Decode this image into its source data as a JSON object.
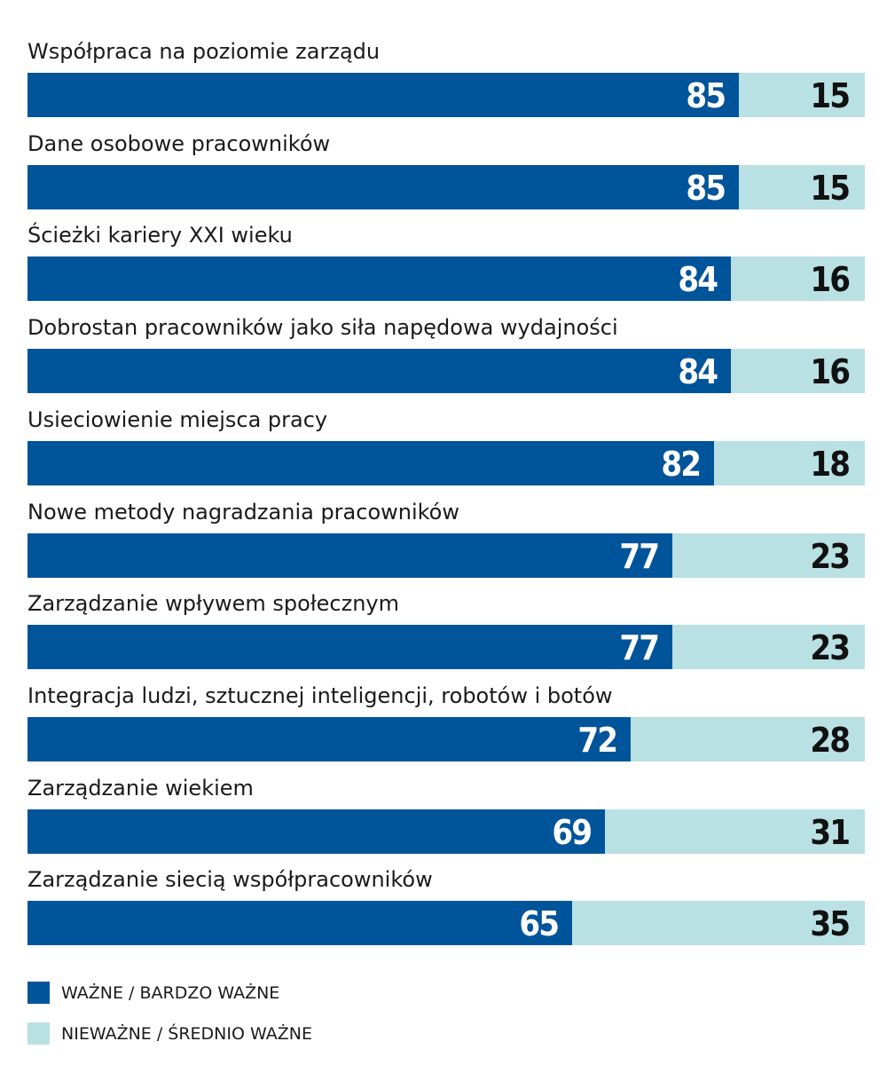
{
  "colors": {
    "primary": "#00549a",
    "secondary": "#b9e0e3",
    "primary_text": "#ffffff",
    "secondary_text": "#111111"
  },
  "chart_data": {
    "type": "bar",
    "orientation": "horizontal",
    "stacked": true,
    "categories": [
      "Współpraca na poziomie zarządu",
      "Dane osobowe pracowników",
      "Ścieżki kariery XXI wieku",
      "Dobrostan pracowników jako siła napędowa wydajności",
      "Usieciowienie miejsca pracy",
      "Nowe metody nagradzania pracowników",
      "Zarządzanie wpływem społecznym",
      "Integracja ludzi, sztucznej inteligencji, robotów i botów",
      "Zarządzanie wiekiem",
      "Zarządzanie siecią współpracowników"
    ],
    "series": [
      {
        "name": "WAŻNE / BARDZO WAŻNE",
        "color": "#00549a",
        "values": [
          85,
          85,
          84,
          84,
          82,
          77,
          77,
          72,
          69,
          65
        ]
      },
      {
        "name": "NIEWAŻNE / ŚREDNIO WAŻNE",
        "color": "#b9e0e3",
        "values": [
          15,
          15,
          16,
          16,
          18,
          23,
          23,
          28,
          31,
          35
        ]
      }
    ],
    "xlim": [
      0,
      100
    ],
    "grid": false,
    "legend_position": "bottom-left"
  }
}
